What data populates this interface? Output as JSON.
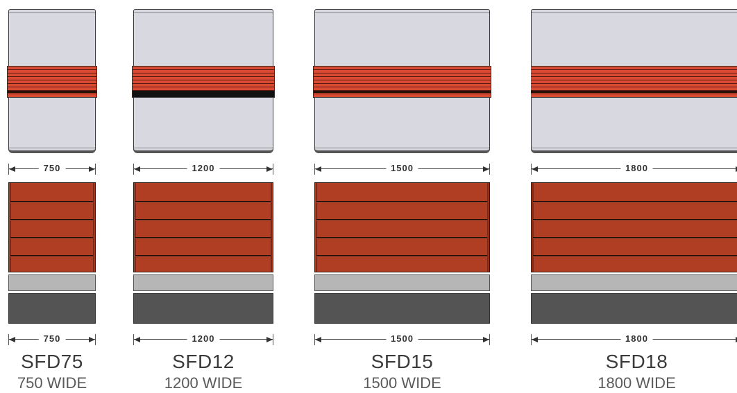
{
  "units": [
    {
      "model": "SFD75",
      "subtitle": "750 WIDE",
      "top_dimension": "750",
      "bottom_dimension": "750"
    },
    {
      "model": "SFD12",
      "subtitle": "1200 WIDE",
      "top_dimension": "1200",
      "bottom_dimension": "1200"
    },
    {
      "model": "SFD15",
      "subtitle": "1500 WIDE",
      "top_dimension": "1500",
      "bottom_dimension": "1500"
    },
    {
      "model": "SFD18",
      "subtitle": "1800 WIDE",
      "top_dimension": "1800",
      "bottom_dimension": "1800"
    }
  ],
  "colors": {
    "glass": "#d8d8e0",
    "shelf": "#d94a32",
    "drawer_front": "#b03e22",
    "kick_plate": "#b6b6b6",
    "base": "#545454"
  }
}
